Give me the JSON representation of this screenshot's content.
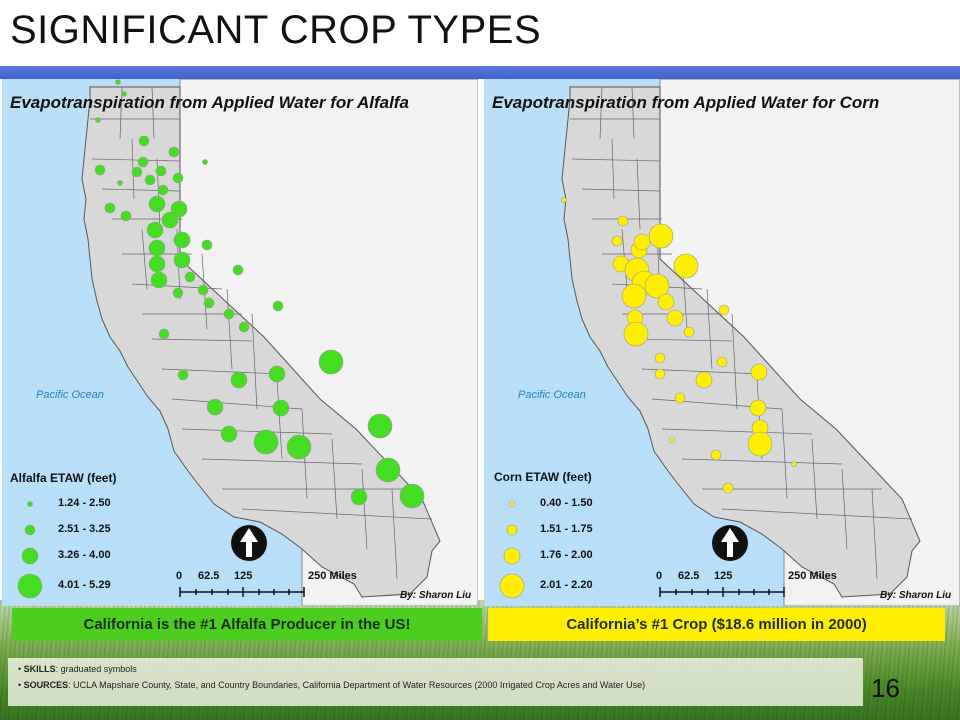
{
  "slide": {
    "title": "SIGNIFICANT CROP TYPES",
    "page_number": "16",
    "notes": [
      {
        "label": "SKILLS",
        "text": ": graduated symbols"
      },
      {
        "label": "SOURCES",
        "text": ": UCLA Mapshare County, State, and Country Boundaries, California Department of Water Resources (2000 Irrigated Crop Acres and Water Use)"
      }
    ]
  },
  "maps": [
    {
      "title": "Evapotranspiration from Applied Water for Alfalfa",
      "ocean_label": "Pacific Ocean",
      "legend_title": "Alfalfa ETAW (feet)",
      "legend_items": [
        "1.24 - 2.50",
        "2.51 - 3.25",
        "3.26 - 4.00",
        "4.01 - 5.29"
      ],
      "symbol_color": "#44dd22",
      "caption": "California  is the #1 Alfalfa Producer in the US!",
      "caption_bg": "#4ccd20",
      "scale_labels": [
        "0",
        "62.5",
        "125",
        "250 Miles"
      ],
      "credit": "By: Sharon Liu"
    },
    {
      "title": "Evapotranspiration from Applied Water for Corn",
      "ocean_label": "Pacific Ocean",
      "legend_title": "Corn ETAW (feet)",
      "legend_items": [
        "0.40 - 1.50",
        "1.51 - 1.75",
        "1.76 - 2.00",
        "2.01 - 2.20"
      ],
      "symbol_color": "#ffee00",
      "caption": "California’s #1 Crop ($18.6 million in 2000)",
      "caption_bg": "#ffee00",
      "scale_labels": [
        "0",
        "62.5",
        "125",
        "250 Miles"
      ],
      "credit": "By: Sharon Liu"
    }
  ],
  "colors": {
    "ocean": "#b8dff7",
    "land": "#d8d8d8",
    "neighbor_state": "#f2f2f2",
    "band": "#4a6ad0"
  }
}
